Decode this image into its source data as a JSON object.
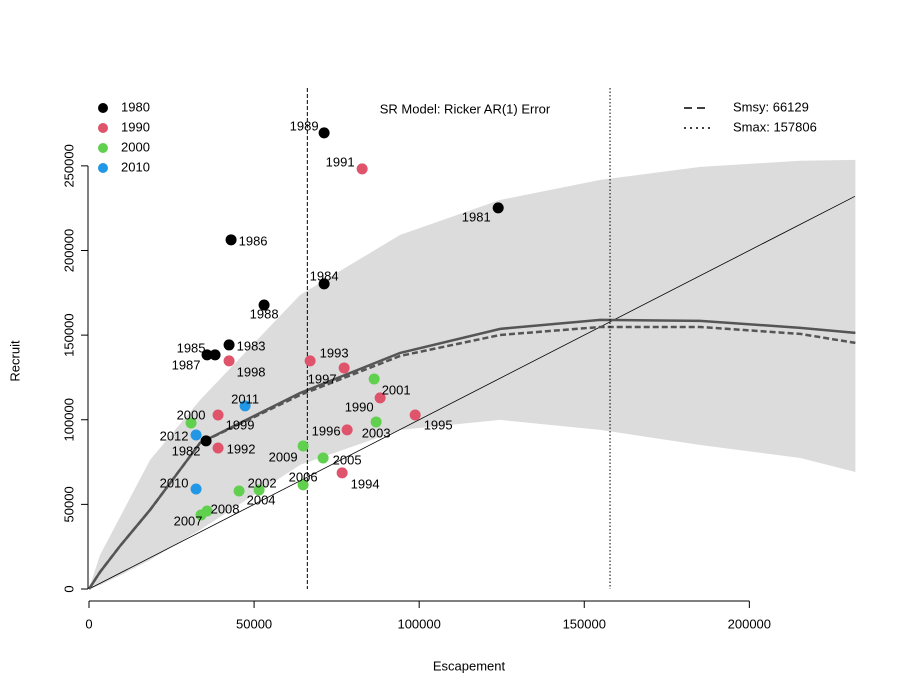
{
  "chart_data": {
    "type": "scatter",
    "title": "SR Model: Ricker AR(1) Error",
    "x_label": "Escapement",
    "y_label": "Recruit",
    "xlim": [
      0,
      232000
    ],
    "ylim": [
      0,
      296000
    ],
    "xticks": [
      0,
      50000,
      100000,
      150000,
      200000
    ],
    "yticks": [
      0,
      50000,
      100000,
      150000,
      200000,
      250000
    ],
    "series": [
      {
        "name": "1980",
        "color": "#000000",
        "x": [
          71212,
          123939,
          43030,
          71212,
          53030,
          42424,
          35758,
          38182,
          35455
        ],
        "values": [
          269500,
          225200,
          206300,
          180300,
          167800,
          144200,
          138300,
          138300,
          87500
        ],
        "labels": [
          "1989",
          "1981",
          "1986",
          "1984",
          "1988",
          "1983",
          "1985",
          "1987",
          "1982"
        ]
      },
      {
        "name": "1990",
        "color": "#DF536B",
        "x": [
          82727,
          66970,
          42424,
          77273,
          88182,
          98788,
          39091,
          78182,
          39091,
          76667
        ],
        "values": [
          248200,
          134800,
          134800,
          130600,
          112900,
          102800,
          102800,
          94000,
          83300,
          68600
        ],
        "labels": [
          "1991",
          "1993",
          "1998",
          "1997",
          "1990",
          "1995",
          "1999",
          "1996",
          "1992",
          "1994"
        ]
      },
      {
        "name": "2000",
        "color": "#61D04F",
        "x": [
          30909,
          86364,
          86970,
          64848,
          70909,
          64848,
          51515,
          45455,
          35758,
          33939
        ],
        "values": [
          98100,
          124100,
          98700,
          84500,
          77400,
          61500,
          58500,
          57900,
          46100,
          43700
        ],
        "labels": [
          "2000",
          "2001",
          "2003",
          "2009",
          "2005",
          "2006",
          "2002",
          "2004",
          "2008",
          "2007"
        ]
      },
      {
        "name": "2010",
        "color": "#2297E6",
        "x": [
          47273,
          32424,
          32424
        ],
        "values": [
          108200,
          91000,
          59100
        ],
        "labels": [
          "2011",
          "2012",
          "2010"
        ]
      }
    ],
    "band": {
      "color": "#dcdcdc",
      "x": [
        0,
        3333,
        9394,
        18485,
        33636,
        63939,
        94242,
        124545,
        154848,
        185152,
        215455,
        232121
      ],
      "upper": [
        0,
        20100,
        42500,
        76200,
        111700,
        173800,
        209200,
        229900,
        241700,
        249400,
        253000,
        253500
      ],
      "lower": [
        0,
        2400,
        8000,
        17100,
        34900,
        73300,
        94000,
        99900,
        94000,
        85100,
        77400,
        69100
      ]
    },
    "fit": {
      "color": "#555555",
      "x": [
        0,
        3333,
        9394,
        18485,
        33636,
        63939,
        94242,
        124545,
        154848,
        185152,
        215455,
        232121
      ],
      "values": [
        0,
        10000,
        25400,
        46700,
        86300,
        115800,
        139500,
        153700,
        159000,
        158400,
        154300,
        151300
      ]
    },
    "fit_ar1": {
      "color": "#555555",
      "x": [
        0,
        3333,
        9394,
        18485,
        33636,
        63939,
        94242,
        124545,
        154848,
        185152,
        215455,
        232121
      ],
      "values": [
        0,
        10000,
        25400,
        46700,
        86300,
        114600,
        137700,
        150100,
        154800,
        154800,
        150700,
        145400
      ]
    },
    "smsy": {
      "value": 66129,
      "label": "Smsy: 66129"
    },
    "smax": {
      "value": 157806,
      "label": "Smax: 157806"
    }
  }
}
